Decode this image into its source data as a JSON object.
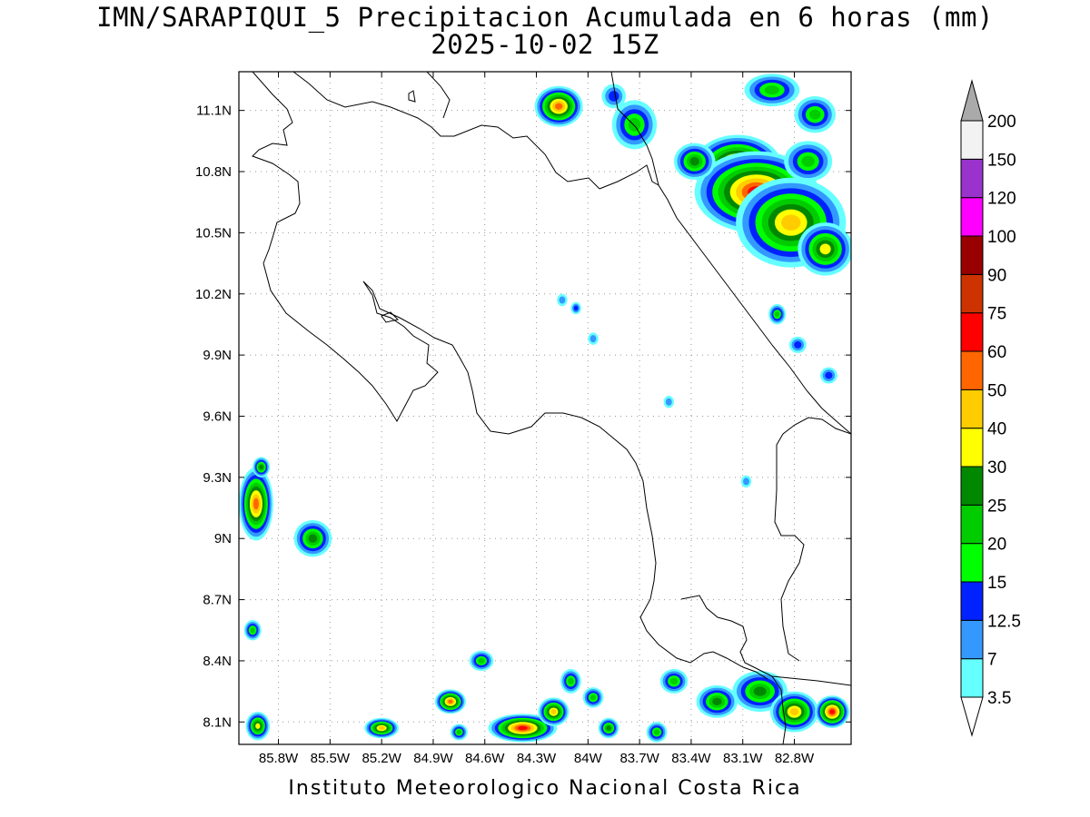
{
  "title": {
    "line1": "IMN/SARAPIQUI_5 Precipitacion Acumulada en 6 horas (mm)",
    "line2": "2025-10-02 15Z"
  },
  "footer": "Instituto Meteorologico Nacional Costa Rica",
  "map": {
    "lon_range": [
      -86.03,
      -82.47
    ],
    "lat_range": [
      7.99,
      11.29
    ],
    "lon_ticks": [
      {
        "value": -85.8,
        "label": "85.8W"
      },
      {
        "value": -85.5,
        "label": "85.5W"
      },
      {
        "value": -85.2,
        "label": "85.2W"
      },
      {
        "value": -84.9,
        "label": "84.9W"
      },
      {
        "value": -84.6,
        "label": "84.6W"
      },
      {
        "value": -84.3,
        "label": "84.3W"
      },
      {
        "value": -84.0,
        "label": "84W"
      },
      {
        "value": -83.7,
        "label": "83.7W"
      },
      {
        "value": -83.4,
        "label": "83.4W"
      },
      {
        "value": -83.1,
        "label": "83.1W"
      },
      {
        "value": -82.8,
        "label": "82.8W"
      }
    ],
    "lat_ticks": [
      {
        "value": 8.1,
        "label": "8.1N"
      },
      {
        "value": 8.4,
        "label": "8.4N"
      },
      {
        "value": 8.7,
        "label": "8.7N"
      },
      {
        "value": 9.0,
        "label": "9N"
      },
      {
        "value": 9.3,
        "label": "9.3N"
      },
      {
        "value": 9.6,
        "label": "9.6N"
      },
      {
        "value": 9.9,
        "label": "9.9N"
      },
      {
        "value": 10.2,
        "label": "10.2N"
      },
      {
        "value": 10.5,
        "label": "10.5N"
      },
      {
        "value": 10.8,
        "label": "10.8N"
      },
      {
        "value": 11.1,
        "label": "11.1N"
      }
    ],
    "grid": "dotted"
  },
  "colorbar": {
    "levels": [
      "3.5",
      "7",
      "12.5",
      "15",
      "20",
      "25",
      "30",
      "40",
      "50",
      "60",
      "75",
      "90",
      "100",
      "120",
      "150",
      "200"
    ],
    "colors": [
      "#ffffff",
      "#66ffff",
      "#3399ff",
      "#0022ff",
      "#00ff00",
      "#00cc00",
      "#008800",
      "#ffff00",
      "#ffcc00",
      "#ff6600",
      "#ff0000",
      "#cc3300",
      "#990000",
      "#ff00ff",
      "#9933cc",
      "#f2f2f2",
      "#aaaaaa"
    ]
  },
  "precip_cells": [
    {
      "lon": -84.17,
      "lat": 11.12,
      "rx": 0.14,
      "ry": 0.1,
      "level": 9
    },
    {
      "lon": -83.85,
      "lat": 11.17,
      "rx": 0.07,
      "ry": 0.06,
      "level": 3
    },
    {
      "lon": -83.73,
      "lat": 11.03,
      "rx": 0.13,
      "ry": 0.12,
      "level": 5
    },
    {
      "lon": -83.13,
      "lat": 10.82,
      "rx": 0.26,
      "ry": 0.16,
      "level": 10
    },
    {
      "lon": -83.02,
      "lat": 10.7,
      "rx": 0.36,
      "ry": 0.2,
      "level": 10
    },
    {
      "lon": -82.82,
      "lat": 10.55,
      "rx": 0.32,
      "ry": 0.22,
      "level": 8
    },
    {
      "lon": -82.62,
      "lat": 10.42,
      "rx": 0.16,
      "ry": 0.13,
      "level": 7
    },
    {
      "lon": -82.93,
      "lat": 11.2,
      "rx": 0.16,
      "ry": 0.08,
      "level": 5
    },
    {
      "lon": -82.68,
      "lat": 11.08,
      "rx": 0.12,
      "ry": 0.09,
      "level": 5
    },
    {
      "lon": -83.38,
      "lat": 10.85,
      "rx": 0.12,
      "ry": 0.09,
      "level": 6
    },
    {
      "lon": -82.72,
      "lat": 10.85,
      "rx": 0.14,
      "ry": 0.1,
      "level": 5
    },
    {
      "lon": -82.9,
      "lat": 10.1,
      "rx": 0.05,
      "ry": 0.05,
      "level": 5
    },
    {
      "lon": -82.78,
      "lat": 9.95,
      "rx": 0.05,
      "ry": 0.04,
      "level": 3
    },
    {
      "lon": -82.6,
      "lat": 9.8,
      "rx": 0.05,
      "ry": 0.04,
      "level": 3
    },
    {
      "lon": -84.15,
      "lat": 10.17,
      "rx": 0.03,
      "ry": 0.03,
      "level": 2
    },
    {
      "lon": -84.07,
      "lat": 10.13,
      "rx": 0.03,
      "ry": 0.03,
      "level": 3
    },
    {
      "lon": -83.97,
      "lat": 9.98,
      "rx": 0.03,
      "ry": 0.03,
      "level": 2
    },
    {
      "lon": -83.53,
      "lat": 9.67,
      "rx": 0.03,
      "ry": 0.03,
      "level": 2
    },
    {
      "lon": -83.08,
      "lat": 9.28,
      "rx": 0.03,
      "ry": 0.03,
      "level": 2
    },
    {
      "lon": -85.93,
      "lat": 9.17,
      "rx": 0.1,
      "ry": 0.18,
      "level": 9
    },
    {
      "lon": -85.9,
      "lat": 9.35,
      "rx": 0.05,
      "ry": 0.05,
      "level": 6
    },
    {
      "lon": -85.6,
      "lat": 9.0,
      "rx": 0.11,
      "ry": 0.09,
      "level": 6
    },
    {
      "lon": -85.95,
      "lat": 8.55,
      "rx": 0.05,
      "ry": 0.05,
      "level": 5
    },
    {
      "lon": -85.92,
      "lat": 8.08,
      "rx": 0.07,
      "ry": 0.07,
      "level": 7
    },
    {
      "lon": -85.2,
      "lat": 8.07,
      "rx": 0.1,
      "ry": 0.05,
      "level": 8
    },
    {
      "lon": -84.8,
      "lat": 8.2,
      "rx": 0.09,
      "ry": 0.06,
      "level": 9
    },
    {
      "lon": -84.62,
      "lat": 8.4,
      "rx": 0.07,
      "ry": 0.05,
      "level": 5
    },
    {
      "lon": -84.38,
      "lat": 8.07,
      "rx": 0.2,
      "ry": 0.07,
      "level": 10
    },
    {
      "lon": -84.2,
      "lat": 8.15,
      "rx": 0.09,
      "ry": 0.07,
      "level": 8
    },
    {
      "lon": -84.1,
      "lat": 8.3,
      "rx": 0.06,
      "ry": 0.06,
      "level": 5
    },
    {
      "lon": -83.97,
      "lat": 8.22,
      "rx": 0.06,
      "ry": 0.05,
      "level": 5
    },
    {
      "lon": -83.88,
      "lat": 8.07,
      "rx": 0.06,
      "ry": 0.05,
      "level": 6
    },
    {
      "lon": -83.5,
      "lat": 8.3,
      "rx": 0.08,
      "ry": 0.06,
      "level": 5
    },
    {
      "lon": -83.25,
      "lat": 8.2,
      "rx": 0.12,
      "ry": 0.08,
      "level": 6
    },
    {
      "lon": -83.0,
      "lat": 8.25,
      "rx": 0.16,
      "ry": 0.1,
      "level": 6
    },
    {
      "lon": -82.8,
      "lat": 8.15,
      "rx": 0.14,
      "ry": 0.1,
      "level": 8
    },
    {
      "lon": -82.58,
      "lat": 8.15,
      "rx": 0.1,
      "ry": 0.08,
      "level": 10
    },
    {
      "lon": -83.6,
      "lat": 8.05,
      "rx": 0.06,
      "ry": 0.05,
      "level": 5
    },
    {
      "lon": -84.75,
      "lat": 8.05,
      "rx": 0.05,
      "ry": 0.04,
      "level": 5
    }
  ]
}
